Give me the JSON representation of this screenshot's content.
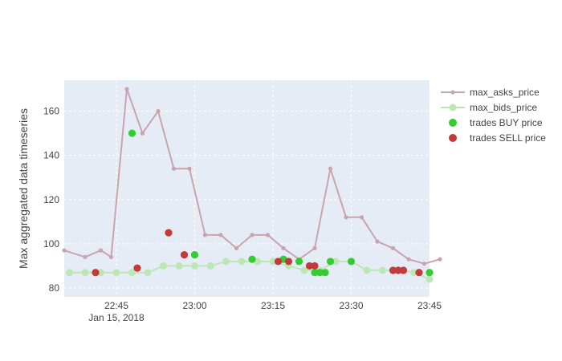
{
  "chart_data": {
    "type": "line",
    "title": "",
    "xlabel": "",
    "ylabel": "Max aggregated data timeseries",
    "x_ticks": [
      {
        "time": "22:45",
        "label": "22:45",
        "sublabel": "Jan 15, 2018"
      },
      {
        "time": "23:00",
        "label": "23:00"
      },
      {
        "time": "23:15",
        "label": "23:15"
      },
      {
        "time": "23:30",
        "label": "23:30"
      },
      {
        "time": "23:45",
        "label": "23:45"
      }
    ],
    "xlim": [
      "22:35",
      "23:45"
    ],
    "ylim": [
      76,
      174
    ],
    "y_ticks": [
      80,
      100,
      120,
      140,
      160
    ],
    "grid": true,
    "legend_position": "right",
    "series": [
      {
        "name": "max_asks_price",
        "mode": "lines+markers",
        "color": "#c9a4ad",
        "x": [
          "22:35",
          "22:39",
          "22:42",
          "22:44",
          "22:47",
          "22:50",
          "22:53",
          "22:56",
          "22:59",
          "23:02",
          "23:05",
          "23:08",
          "23:11",
          "23:14",
          "23:17",
          "23:20",
          "23:23",
          "23:26",
          "23:29",
          "23:32",
          "23:35",
          "23:38",
          "23:41",
          "23:44",
          "23:47"
        ],
        "y": [
          97,
          94,
          97,
          94,
          170,
          150,
          160,
          134,
          134,
          104,
          104,
          98,
          104,
          104,
          98,
          93,
          98,
          134,
          112,
          112,
          101,
          98,
          93,
          91,
          93
        ]
      },
      {
        "name": "max_bids_price",
        "mode": "lines+markers",
        "color": "#bde6b7",
        "x": [
          "22:36",
          "22:39",
          "22:42",
          "22:45",
          "22:48",
          "22:51",
          "22:54",
          "22:57",
          "23:00",
          "23:03",
          "23:06",
          "23:09",
          "23:12",
          "23:15",
          "23:18",
          "23:21",
          "23:24",
          "23:27",
          "23:30",
          "23:33",
          "23:36",
          "23:39",
          "23:42",
          "23:45"
        ],
        "y": [
          87,
          87,
          87,
          87,
          87,
          87,
          90,
          90,
          90,
          90,
          92,
          92,
          92,
          92,
          90,
          88,
          88,
          92,
          92,
          88,
          88,
          88,
          87,
          84
        ]
      },
      {
        "name": "trades BUY price",
        "mode": "markers",
        "color": "#33cc33",
        "x": [
          "22:48",
          "23:00",
          "23:11",
          "23:17",
          "23:20",
          "23:23",
          "23:24",
          "23:25",
          "23:26",
          "23:30",
          "23:45"
        ],
        "y": [
          150,
          95,
          93,
          93,
          92,
          87,
          87,
          87,
          92,
          92,
          87
        ]
      },
      {
        "name": "trades SELL price",
        "mode": "markers",
        "color": "#c33a3a",
        "x": [
          "22:41",
          "22:49",
          "22:55",
          "22:58",
          "23:16",
          "23:18",
          "23:22",
          "23:23",
          "23:38",
          "23:39",
          "23:40",
          "23:43"
        ],
        "y": [
          87,
          89,
          105,
          95,
          92,
          92,
          90,
          90,
          88,
          88,
          88,
          87
        ]
      }
    ]
  }
}
